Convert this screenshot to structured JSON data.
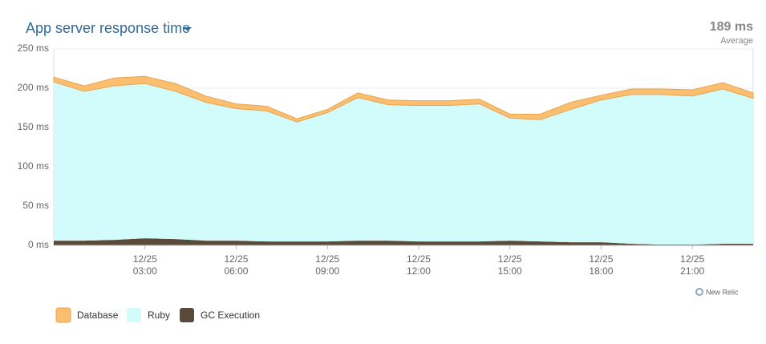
{
  "chart_data": {
    "type": "stacked-area",
    "title": "App server response time",
    "summary": {
      "value": "189 ms",
      "label": "Average"
    },
    "watermark": "New Relic",
    "x": [
      0,
      1,
      2,
      3,
      4,
      5,
      6,
      7,
      8,
      9,
      10,
      11,
      12,
      13,
      14,
      15,
      16,
      17,
      18,
      19,
      20,
      21,
      22,
      23
    ],
    "xlim": [
      0,
      23
    ],
    "xticks": [
      {
        "value": 3,
        "label": "12/25 03:00"
      },
      {
        "value": 6,
        "label": "12/25 06:00"
      },
      {
        "value": 9,
        "label": "12/25 09:00"
      },
      {
        "value": 12,
        "label": "12/25 12:00"
      },
      {
        "value": 15,
        "label": "12/25 15:00"
      },
      {
        "value": 18,
        "label": "12/25 18:00"
      },
      {
        "value": 21,
        "label": "12/25 21:00"
      }
    ],
    "ylim": [
      0,
      250
    ],
    "yticks": [
      {
        "value": 0,
        "label": "0 ms"
      },
      {
        "value": 50,
        "label": "50 ms"
      },
      {
        "value": 100,
        "label": "100 ms"
      },
      {
        "value": 150,
        "label": "150 ms"
      },
      {
        "value": 200,
        "label": "200 ms"
      },
      {
        "value": 250,
        "label": "250 ms"
      }
    ],
    "grid": true,
    "legend": "bottom-left",
    "series": [
      {
        "name": "GC Execution",
        "color": "#5a4a3a",
        "values": [
          6,
          6,
          7,
          9,
          8,
          6,
          6,
          5,
          5,
          5,
          6,
          6,
          5,
          5,
          5,
          6,
          5,
          4,
          4,
          2,
          1,
          1,
          2,
          2
        ]
      },
      {
        "name": "Ruby",
        "color": "#d1fcfb",
        "values": [
          202,
          190,
          196,
          197,
          188,
          176,
          168,
          166,
          152,
          164,
          182,
          173,
          173,
          173,
          175,
          156,
          155,
          169,
          181,
          190,
          191,
          189,
          197,
          185
        ]
      },
      {
        "name": "Database",
        "color": "#fcbf6f",
        "values": [
          6,
          7,
          10,
          9,
          10,
          8,
          6,
          6,
          4,
          4,
          6,
          6,
          6,
          6,
          6,
          5,
          7,
          9,
          6,
          7,
          7,
          8,
          8,
          7
        ]
      }
    ],
    "legend_order": [
      2,
      1,
      0
    ]
  }
}
